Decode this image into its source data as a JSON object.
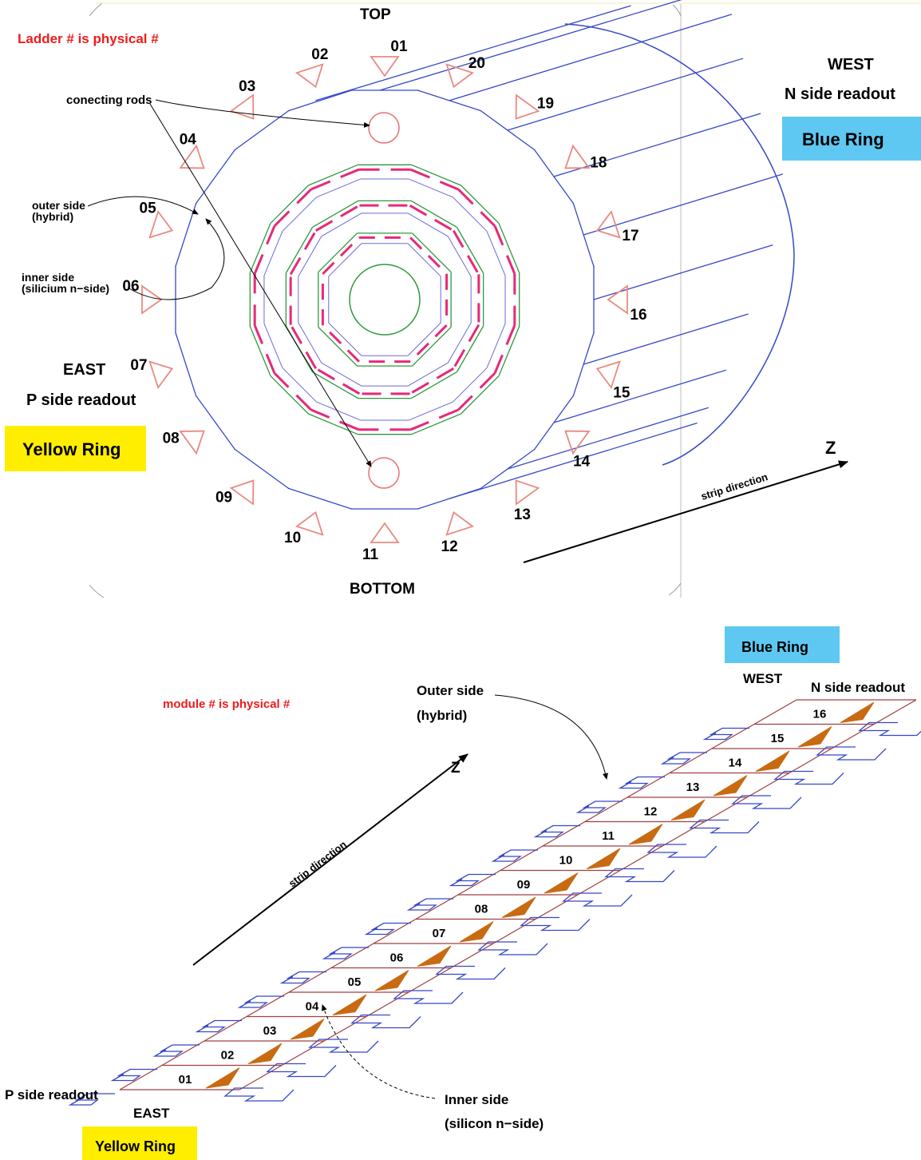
{
  "top_diagram": {
    "note": "Ladder # is physical #",
    "top_label": "TOP",
    "bottom_label": "BOTTOM",
    "west_label": "WEST",
    "west_readout": "N  side readout",
    "east_label": "EAST",
    "east_readout": "P side readout",
    "blue_ring": "Blue Ring",
    "yellow_ring": "Yellow Ring",
    "connecting_rods": "conecting rods",
    "outer_side_1": "outer side",
    "outer_side_2": "(hybrid)",
    "inner_side_1": "inner side",
    "inner_side_2": "(silicium n−side)",
    "strip_direction": "strip direction",
    "z_label": "Z",
    "ladders": [
      "01",
      "02",
      "03",
      "04",
      "05",
      "06",
      "07",
      "08",
      "09",
      "10",
      "11",
      "12",
      "13",
      "14",
      "15",
      "16",
      "17",
      "18",
      "19",
      "20"
    ]
  },
  "bottom_diagram": {
    "note": "module # is physical #",
    "blue_ring": "Blue Ring",
    "west_label": "WEST",
    "west_readout": "N  side readout",
    "outer_side_1": "Outer side",
    "outer_side_2": "(hybrid)",
    "z_label": "Z",
    "strip_direction": "strip direction",
    "p_readout": "P side readout",
    "east_label": "EAST",
    "yellow_ring": "Yellow Ring",
    "inner_side_1": "Inner side",
    "inner_side_2": "(silicon n−side)",
    "modules": [
      "01",
      "02",
      "03",
      "04",
      "05",
      "06",
      "07",
      "08",
      "09",
      "10",
      "11",
      "12",
      "13",
      "14",
      "15",
      "16"
    ]
  },
  "colors": {
    "blue_box": "#5ec8f2",
    "yellow_box": "#ffee00",
    "ladder_line": "#3548c8",
    "triangle": "#e88a80",
    "pink": "#e8287a",
    "green": "#2e9a3a",
    "wafer": "#a04040",
    "hybrid": "#c86a12"
  }
}
